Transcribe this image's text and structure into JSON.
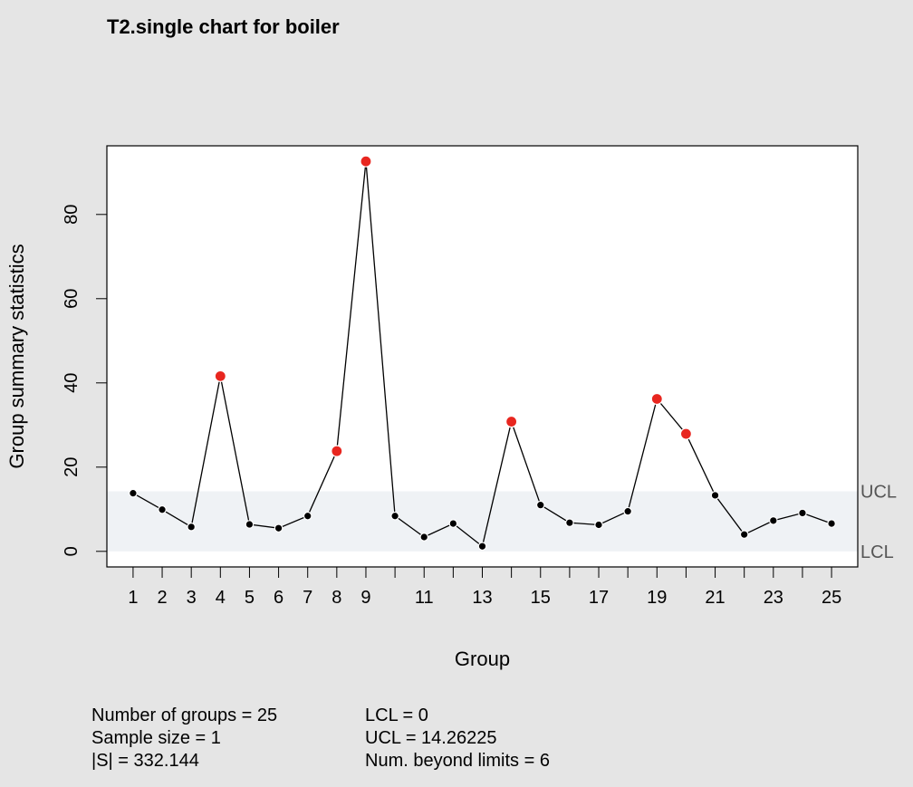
{
  "chart_data": {
    "type": "line",
    "title": "T2.single chart for boiler",
    "xlabel": "Group",
    "ylabel": "Group summary statistics",
    "x": [
      1,
      2,
      3,
      4,
      5,
      6,
      7,
      8,
      9,
      10,
      11,
      12,
      13,
      14,
      15,
      16,
      17,
      18,
      19,
      20,
      21,
      22,
      23,
      24,
      25
    ],
    "values": [
      13.8,
      9.9,
      5.8,
      41.6,
      6.4,
      5.5,
      8.4,
      23.8,
      92.6,
      8.4,
      3.4,
      6.6,
      1.2,
      30.8,
      11.0,
      6.8,
      6.3,
      9.5,
      36.2,
      27.9,
      13.3,
      4.0,
      7.3,
      9.1,
      6.6
    ],
    "beyond_limits": [
      4,
      8,
      9,
      14,
      19,
      20
    ],
    "xtick_labels": [
      "1",
      "2",
      "3",
      "4",
      "5",
      "6",
      "7",
      "8",
      "9",
      "11",
      "13",
      "15",
      "17",
      "19",
      "21",
      "23",
      "25"
    ],
    "yticks": [
      0,
      20,
      40,
      60,
      80
    ],
    "ytick_labels": [
      "0",
      "20",
      "40",
      "60",
      "80"
    ],
    "ylim": [
      -3.7,
      96.3
    ],
    "xlim": [
      0.1,
      25.9
    ],
    "lcl": 0,
    "ucl": 14.26225,
    "limit_labels": {
      "ucl": "UCL",
      "lcl": "LCL"
    },
    "colors": {
      "point": "#000000",
      "violation": "#e8261f",
      "band": "#eff2f5",
      "line": "#000000",
      "background": "#e5e5e5",
      "plot_bg": "#ffffff"
    }
  },
  "stats": {
    "groups": "Number of groups = 25",
    "sample_size": "Sample size = 1",
    "det_s": "|S| = 332.144",
    "lcl": "LCL = 0",
    "ucl": "UCL = 14.26225",
    "beyond": "Num. beyond limits = 6"
  }
}
